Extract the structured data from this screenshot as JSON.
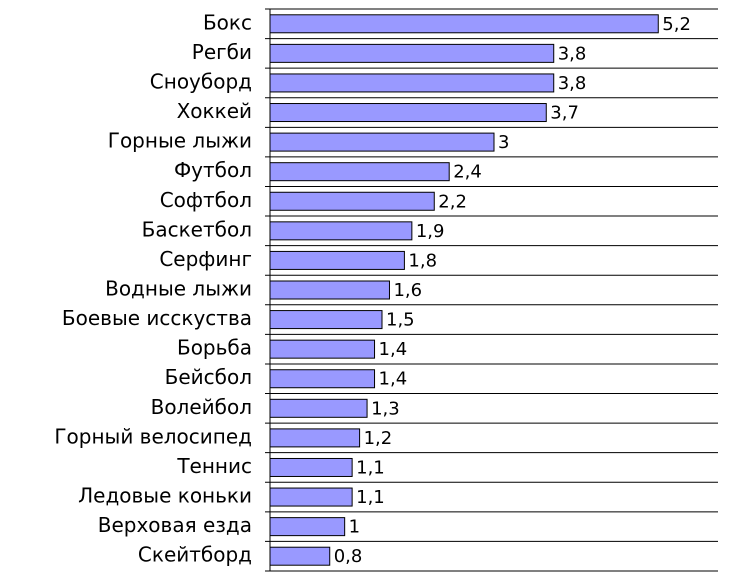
{
  "chart_data": {
    "type": "bar",
    "orientation": "horizontal",
    "color": "#9999ff",
    "categories": [
      "Бокс",
      "Регби",
      "Сноуборд",
      "Хоккей",
      "Горные лыжи",
      "Футбол",
      "Софтбол",
      "Баскетбол",
      "Серфинг",
      "Водные лыжи",
      "Боевые исскуства",
      "Борьба",
      "Бейсбол",
      "Волейбол",
      "Горный велосипед",
      "Теннис",
      "Ледовые коньки",
      "Верховая езда",
      "Скейтборд"
    ],
    "values": [
      5.2,
      3.8,
      3.8,
      3.7,
      3,
      2.4,
      2.2,
      1.9,
      1.8,
      1.6,
      1.5,
      1.4,
      1.4,
      1.3,
      1.2,
      1.1,
      1.1,
      1,
      0.8
    ],
    "value_labels": [
      "5,2",
      "3,8",
      "3,8",
      "3,7",
      "3",
      "2,4",
      "2,2",
      "1,9",
      "1,8",
      "1,6",
      "1,5",
      "1,4",
      "1,4",
      "1,3",
      "1,2",
      "1,1",
      "1,1",
      "1",
      "0,8"
    ],
    "xlim": [
      0,
      6
    ],
    "grid": true
  }
}
